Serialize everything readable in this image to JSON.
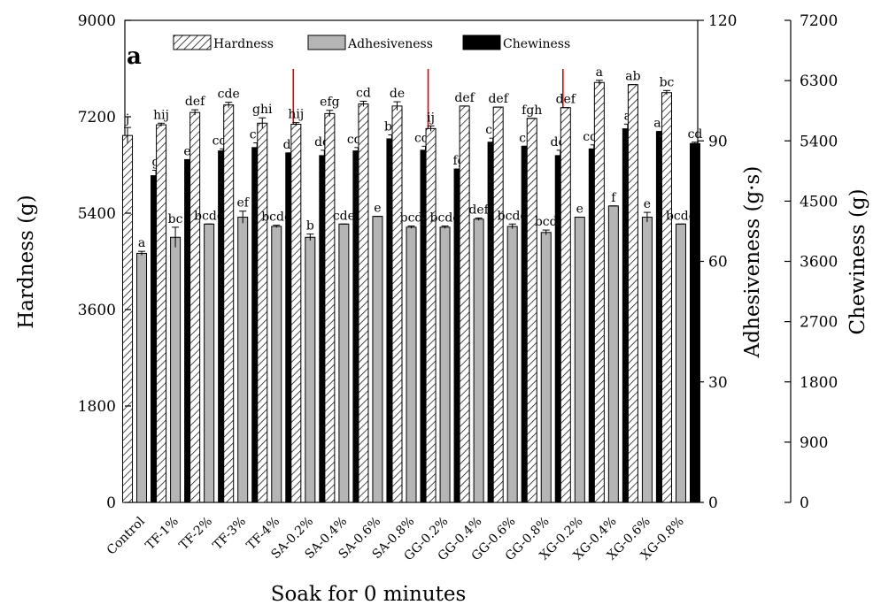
{
  "chart_data": {
    "type": "bar",
    "panel_label": "a",
    "title": "",
    "xlabel": "Soak for 0 minutes",
    "ylabel_left": "Hardness (g)",
    "ylabel_right1": "Adhesiveness (g·s)",
    "ylabel_right2": "Chewiness (g)",
    "ylim_hardness": [
      0,
      9000
    ],
    "ylim_adhesiveness": [
      0,
      120
    ],
    "ylim_chewiness": [
      0,
      7200
    ],
    "yticks_hardness": [
      "0",
      "1800",
      "3600",
      "5400",
      "7200",
      "9000"
    ],
    "yticks_adhesiveness": [
      "0",
      "30",
      "60",
      "90",
      "120"
    ],
    "yticks_chewiness": [
      "0",
      "900",
      "1800",
      "2700",
      "3600",
      "4500",
      "5400",
      "6300",
      "7200"
    ],
    "legend": {
      "placement": "top",
      "entries": [
        "Hardness",
        "Adhesiveness",
        "Chewiness"
      ]
    },
    "categories": [
      "Control",
      "TF-1%",
      "TF-2%",
      "TF-3%",
      "TF-4%",
      "SA-0.2%",
      "SA-0.4%",
      "SA-0.6%",
      "SA-0.8%",
      "GG-0.2%",
      "GG-0.4%",
      "GG-0.6%",
      "GG-0.8%",
      "XG-0.2%",
      "XG-0.4%",
      "XG-0.6%",
      "XG-0.8%"
    ],
    "group_separators_after_index": [
      4,
      8,
      12
    ],
    "series": [
      {
        "name": "Hardness",
        "axis": "hardness",
        "values": [
          6850,
          7050,
          7280,
          7420,
          7080,
          7060,
          7260,
          7440,
          7400,
          6980,
          7400,
          7380,
          7170,
          7370,
          7840,
          7800,
          7650
        ],
        "errors": [
          150,
          30,
          50,
          50,
          100,
          30,
          60,
          50,
          80,
          50,
          0,
          0,
          0,
          0,
          40,
          0,
          40
        ],
        "labels": [
          "j",
          "hij",
          "def",
          "cde",
          "ghi",
          "hij",
          "efg",
          "cd",
          "de",
          "ij",
          "def",
          "def",
          "fgh",
          "def",
          "a",
          "ab",
          "bc"
        ]
      },
      {
        "name": "Adhesiveness",
        "axis": "adhesiveness",
        "values": [
          62,
          66,
          69.3,
          71,
          68.7,
          66,
          69.3,
          71.2,
          68.5,
          68.5,
          70.5,
          68.7,
          67.2,
          71,
          73.8,
          71,
          69.3
        ],
        "errors": [
          0.5,
          2.5,
          0,
          1.5,
          0.3,
          0.8,
          0,
          0,
          0.3,
          0.3,
          0.3,
          0.6,
          0.6,
          0,
          0,
          1.2,
          0
        ],
        "labels": [
          "a",
          "bc",
          "bcde",
          "ef",
          "bcde",
          "b",
          "cde",
          "e",
          "bcd",
          "bcde",
          "def",
          "bcde",
          "bcd",
          "e",
          "f",
          "e",
          "bcde"
        ]
      },
      {
        "name": "Chewiness",
        "axis": "chewiness",
        "values": [
          4880,
          5120,
          5250,
          5300,
          5220,
          5180,
          5250,
          5430,
          5260,
          4980,
          5380,
          5320,
          5180,
          5280,
          5580,
          5540,
          5360
        ],
        "errors": [
          80,
          0,
          30,
          70,
          0,
          80,
          50,
          60,
          60,
          0,
          60,
          0,
          80,
          60,
          70,
          0,
          20
        ],
        "labels": [
          "g",
          "ef",
          "cde",
          "cd",
          "de",
          "def",
          "cde",
          "bc",
          "cde",
          "fg",
          "cd",
          "cd",
          "def",
          "cde",
          "a",
          "ab",
          "cd"
        ]
      }
    ],
    "colors": {
      "hardness_fill": "#ffffff",
      "hardness_hatch": "#000000",
      "adhesiveness_fill": "#b5b5b5",
      "chewiness_fill": "#000000",
      "separator": "#dd0000"
    }
  }
}
